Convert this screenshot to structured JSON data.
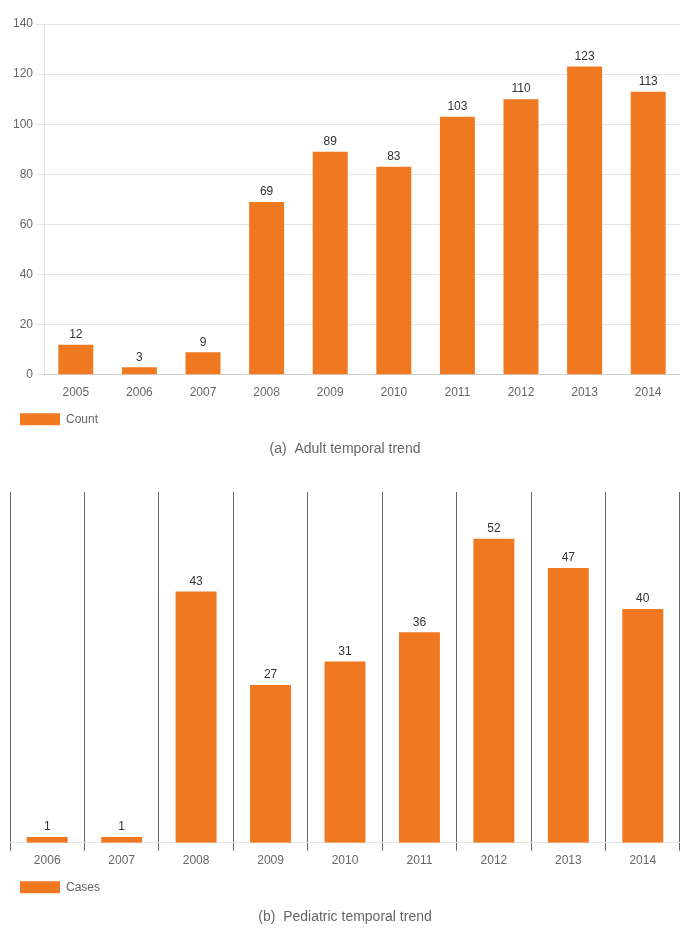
{
  "chart_data": [
    {
      "type": "bar",
      "subtitle": "(a)  Adult temporal trend",
      "categories": [
        "2005",
        "2006",
        "2007",
        "2008",
        "2009",
        "2010",
        "2011",
        "2012",
        "2013",
        "2014"
      ],
      "series": [
        {
          "name": "Count",
          "color": "#F07820",
          "values": [
            12,
            3,
            9,
            69,
            89,
            83,
            103,
            110,
            123,
            113
          ]
        }
      ],
      "ylim": [
        0,
        140
      ],
      "yticks": [
        0,
        20,
        40,
        60,
        80,
        100,
        120,
        140
      ],
      "grid": "y",
      "legend": "bottom",
      "data_labels": true
    },
    {
      "type": "bar",
      "subtitle": "(b)  Pediatric temporal trend",
      "categories": [
        "2006",
        "2007",
        "2008",
        "2009",
        "2010",
        "2011",
        "2012",
        "2013",
        "2014"
      ],
      "series": [
        {
          "name": "Cases",
          "color": "#F07820",
          "values": [
            1,
            1,
            43,
            27,
            31,
            36,
            52,
            47,
            40
          ]
        }
      ],
      "ylim": [
        0,
        60
      ],
      "grid": "x",
      "legend": "bottom",
      "data_labels": true,
      "tick_labels": "x"
    }
  ]
}
